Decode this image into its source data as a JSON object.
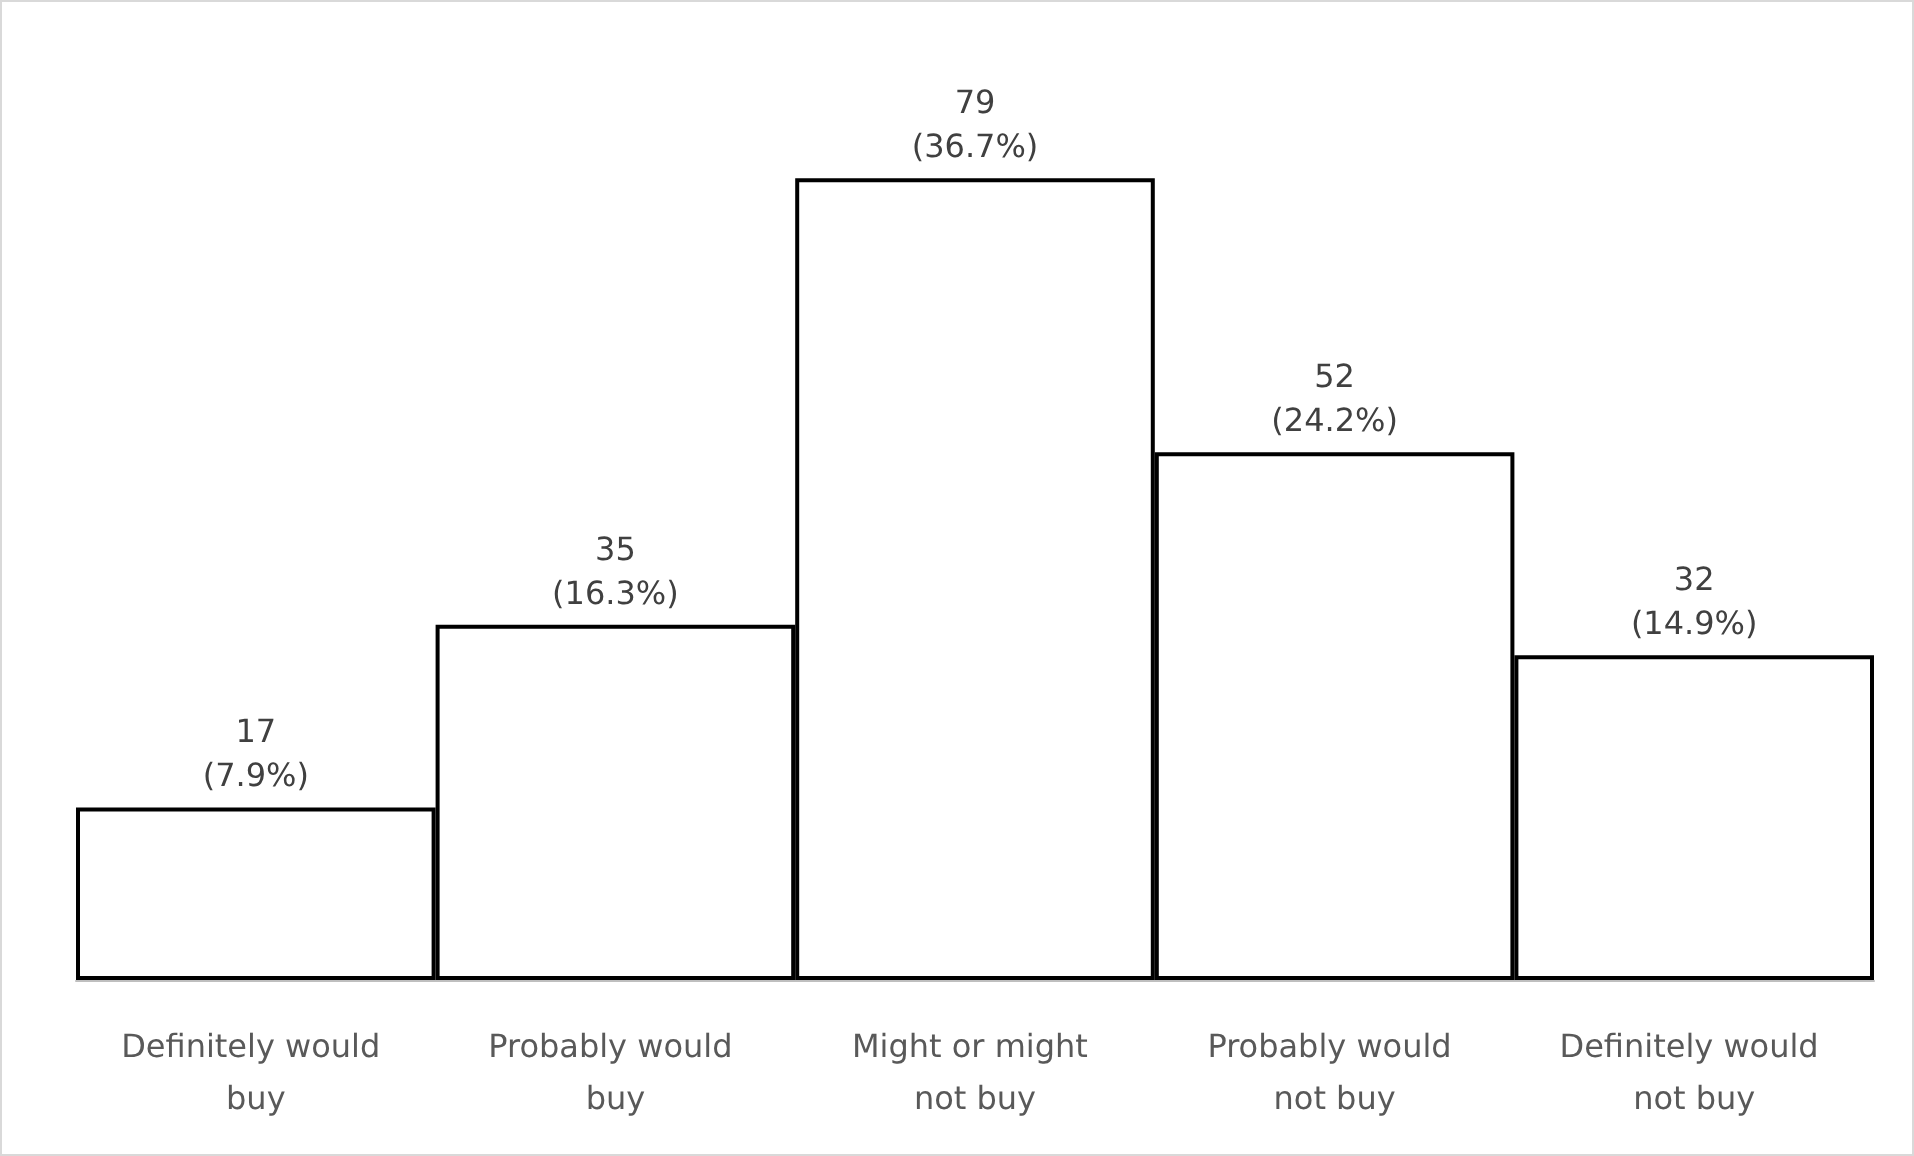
{
  "chart_data": {
    "type": "bar",
    "categories": [
      "Definitely would buy",
      "Probably would buy",
      "Might or might not buy",
      "Probably would not buy",
      "Definitely would not buy"
    ],
    "values": [
      17,
      35,
      79,
      52,
      32
    ],
    "value_labels": [
      "17\n(7.9%)",
      "35\n(16.3%)",
      "79\n(36.7%)",
      "52\n(24.2%)",
      "32\n(14.9%)"
    ],
    "color": "#ffffff",
    "grid": false
  }
}
